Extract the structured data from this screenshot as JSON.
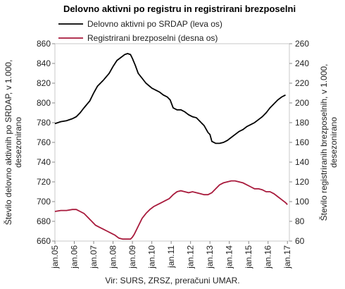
{
  "chart_data": {
    "type": "line",
    "title": "Delovno aktivni po registru in registrirani brezposelni",
    "source": "Vir: SURS, ZRSZ, preračuni UMAR.",
    "ylabel_left": [
      "Število delovno aktivnih po SRDAP, v 1.000,",
      "desezonirano"
    ],
    "ylabel_right": [
      "Število registriranih brezposelnih, v 1.000,",
      "desezonirano"
    ],
    "ylim_left": [
      660,
      860
    ],
    "ylim_right": [
      60,
      260
    ],
    "yticks_left": [
      660,
      680,
      700,
      720,
      740,
      760,
      780,
      800,
      820,
      840,
      860
    ],
    "yticks_right": [
      60,
      80,
      100,
      120,
      140,
      160,
      180,
      200,
      220,
      240,
      260
    ],
    "xlim": [
      2005,
      2017.1
    ],
    "x_tick_labels": [
      "jan.05",
      "jan.06",
      "jan.07",
      "jan.08",
      "jan.09",
      "jan.10",
      "jan.11",
      "jan.12",
      "jan.13",
      "jan.14",
      "jan.15",
      "jan.16",
      "jan.17"
    ],
    "grid": false,
    "legend_position": "top-left",
    "series": [
      {
        "name": "Delovno aktivni po SRDAP (leva os)",
        "axis": "left",
        "color": "#000000",
        "x": [
          2005.0,
          2005.3,
          2005.6,
          2005.9,
          2006.1,
          2006.3,
          2006.5,
          2006.8,
          2007.0,
          2007.2,
          2007.5,
          2007.8,
          2008.0,
          2008.2,
          2008.4,
          2008.6,
          2008.75,
          2008.9,
          2009.0,
          2009.15,
          2009.3,
          2009.5,
          2009.7,
          2010.0,
          2010.2,
          2010.4,
          2010.6,
          2010.8,
          2010.95,
          2011.1,
          2011.3,
          2011.5,
          2011.7,
          2011.9,
          2012.1,
          2012.3,
          2012.5,
          2012.7,
          2012.9,
          2013.0,
          2013.1,
          2013.3,
          2013.5,
          2013.7,
          2013.9,
          2014.1,
          2014.3,
          2014.5,
          2014.7,
          2014.9,
          2015.1,
          2015.3,
          2015.5,
          2015.7,
          2015.9,
          2016.1,
          2016.3,
          2016.5,
          2016.7,
          2016.9
        ],
        "values": [
          779,
          781,
          782,
          784,
          786,
          790,
          795,
          802,
          810,
          817,
          823,
          830,
          837,
          843,
          846,
          849,
          850,
          849,
          845,
          838,
          830,
          825,
          820,
          815,
          813,
          811,
          808,
          806,
          803,
          795,
          793,
          793,
          791,
          788,
          786,
          785,
          781,
          777,
          770,
          768,
          761,
          759,
          759,
          760,
          762,
          765,
          768,
          771,
          773,
          776,
          778,
          780,
          783,
          786,
          790,
          795,
          799,
          803,
          806,
          808
        ]
      },
      {
        "name": "Registrirani brezposelni (desna os)",
        "axis": "right",
        "color": "#a81a3c",
        "x": [
          2005.0,
          2005.3,
          2005.6,
          2005.9,
          2006.1,
          2006.3,
          2006.5,
          2006.7,
          2006.9,
          2007.1,
          2007.3,
          2007.5,
          2007.7,
          2007.9,
          2008.1,
          2008.3,
          2008.5,
          2008.7,
          2008.9,
          2009.0,
          2009.1,
          2009.3,
          2009.5,
          2009.7,
          2009.9,
          2010.1,
          2010.3,
          2010.5,
          2010.7,
          2010.9,
          2011.1,
          2011.3,
          2011.5,
          2011.7,
          2011.9,
          2012.1,
          2012.3,
          2012.5,
          2012.7,
          2012.9,
          2013.1,
          2013.3,
          2013.5,
          2013.7,
          2013.9,
          2014.1,
          2014.3,
          2014.5,
          2014.7,
          2014.9,
          2015.1,
          2015.3,
          2015.5,
          2015.7,
          2015.9,
          2016.1,
          2016.3,
          2016.5,
          2016.7,
          2016.9,
          2017.0
        ],
        "values": [
          90,
          91,
          91,
          92,
          92,
          90,
          88,
          84,
          80,
          76,
          74,
          72,
          70,
          68,
          66,
          63,
          62,
          62,
          62,
          64,
          67,
          75,
          83,
          88,
          92,
          95,
          97,
          99,
          101,
          103,
          107,
          110,
          111,
          110,
          109,
          110,
          109,
          108,
          107,
          107,
          109,
          113,
          117,
          119,
          120,
          121,
          121,
          120,
          119,
          117,
          115,
          113,
          113,
          112,
          110,
          110,
          108,
          105,
          102,
          99,
          97
        ]
      }
    ]
  }
}
